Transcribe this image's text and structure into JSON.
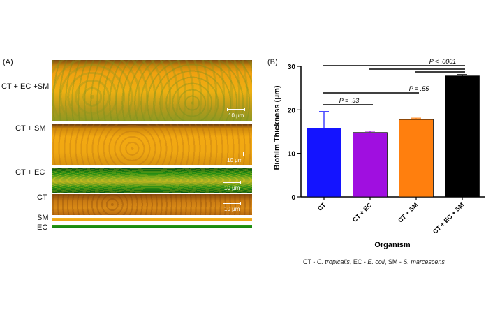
{
  "panels": {
    "a_label": "(A)",
    "b_label": "(B)"
  },
  "micrographs": [
    {
      "label": "CT + EC +SM",
      "scale": "10 μm"
    },
    {
      "label": "CT + SM",
      "scale": "10 μm"
    },
    {
      "label": "CT + EC",
      "scale": "10 μm"
    },
    {
      "label": "CT",
      "scale": "10 μm"
    },
    {
      "label": "SM"
    },
    {
      "label": "EC"
    }
  ],
  "chart_data": {
    "type": "bar",
    "ylabel": "Biofilm Thickness (μm)",
    "xlabel": "Organism",
    "categories": [
      "CT",
      "CT + EC",
      "CT + SM",
      "CT + EC + SM"
    ],
    "values": [
      15.8,
      14.8,
      17.8,
      27.8
    ],
    "errors": [
      3.8,
      0.3,
      0.3,
      0.3
    ],
    "colors": [
      "#1414ff",
      "#a00fe0",
      "#ff7f0e",
      "#000000"
    ],
    "ylim": [
      0,
      30
    ],
    "yticks": [
      0,
      10,
      20,
      30
    ],
    "significance": [
      {
        "from": 0,
        "to": 1,
        "label": "P = .93"
      },
      {
        "from": 0,
        "to": 2,
        "label": "P = .55"
      },
      {
        "from": 2,
        "to": 3,
        "label": ""
      },
      {
        "from": 1,
        "to": 3,
        "label": ""
      },
      {
        "from": 0,
        "to": 3,
        "label": "P < .0001"
      }
    ]
  },
  "caption": {
    "parts": [
      "CT - ",
      "C. tropicalis",
      ", EC - ",
      "E. coli",
      ", SM - ",
      "S. marcescens"
    ]
  }
}
